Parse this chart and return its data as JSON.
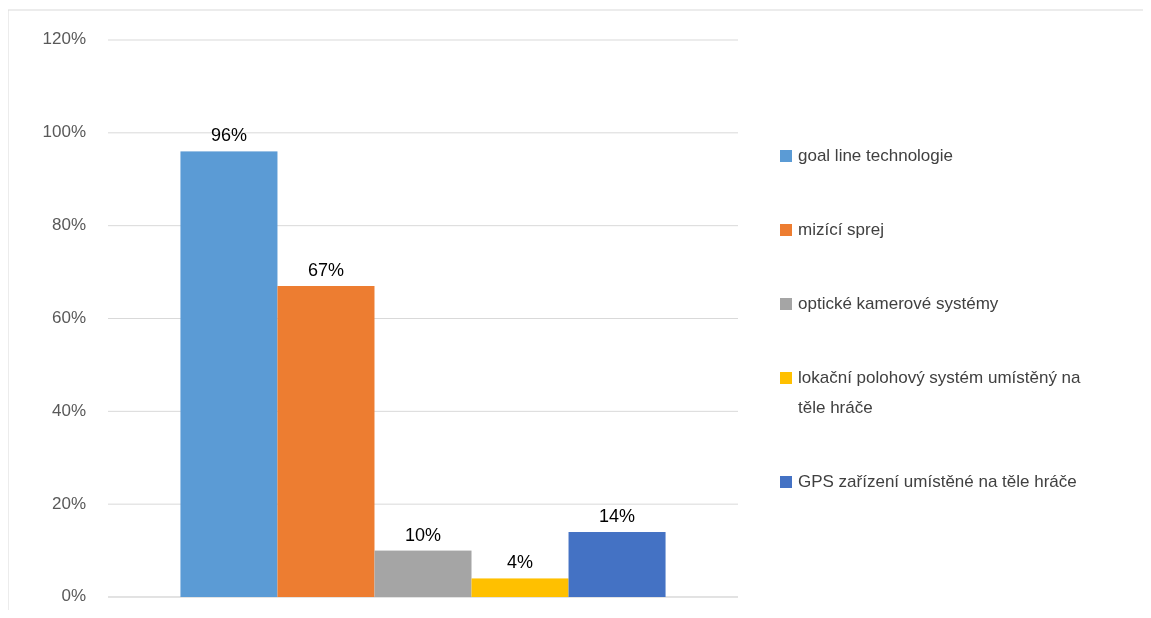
{
  "chart_data": {
    "type": "bar",
    "categories": [
      null
    ],
    "series": [
      {
        "name": "goal line technologie",
        "color": "#5b9bd5",
        "values": [
          96
        ]
      },
      {
        "name": "mizící sprej",
        "color": "#ed7d31",
        "values": [
          67
        ]
      },
      {
        "name": "optické kamerové systémy",
        "color": "#a5a5a5",
        "values": [
          10
        ]
      },
      {
        "name": "lokační polohový systém umístěný na těle hráče",
        "color": "#ffc000",
        "values": [
          4
        ]
      },
      {
        "name": "GPS zařízení umístěné na těle hráče",
        "color": "#4472c4",
        "values": [
          14
        ]
      }
    ],
    "ylim": [
      0,
      120
    ],
    "yticks": [
      {
        "value": 0,
        "label": "0%"
      },
      {
        "value": 20,
        "label": "20%"
      },
      {
        "value": 40,
        "label": "40%"
      },
      {
        "value": 60,
        "label": "60%"
      },
      {
        "value": 80,
        "label": "80%"
      },
      {
        "value": 100,
        "label": "100%"
      },
      {
        "value": 120,
        "label": "120%"
      }
    ],
    "value_labels": [
      "96%",
      "67%",
      "10%",
      "4%",
      "14%"
    ],
    "grid": "y",
    "legend": "right"
  }
}
